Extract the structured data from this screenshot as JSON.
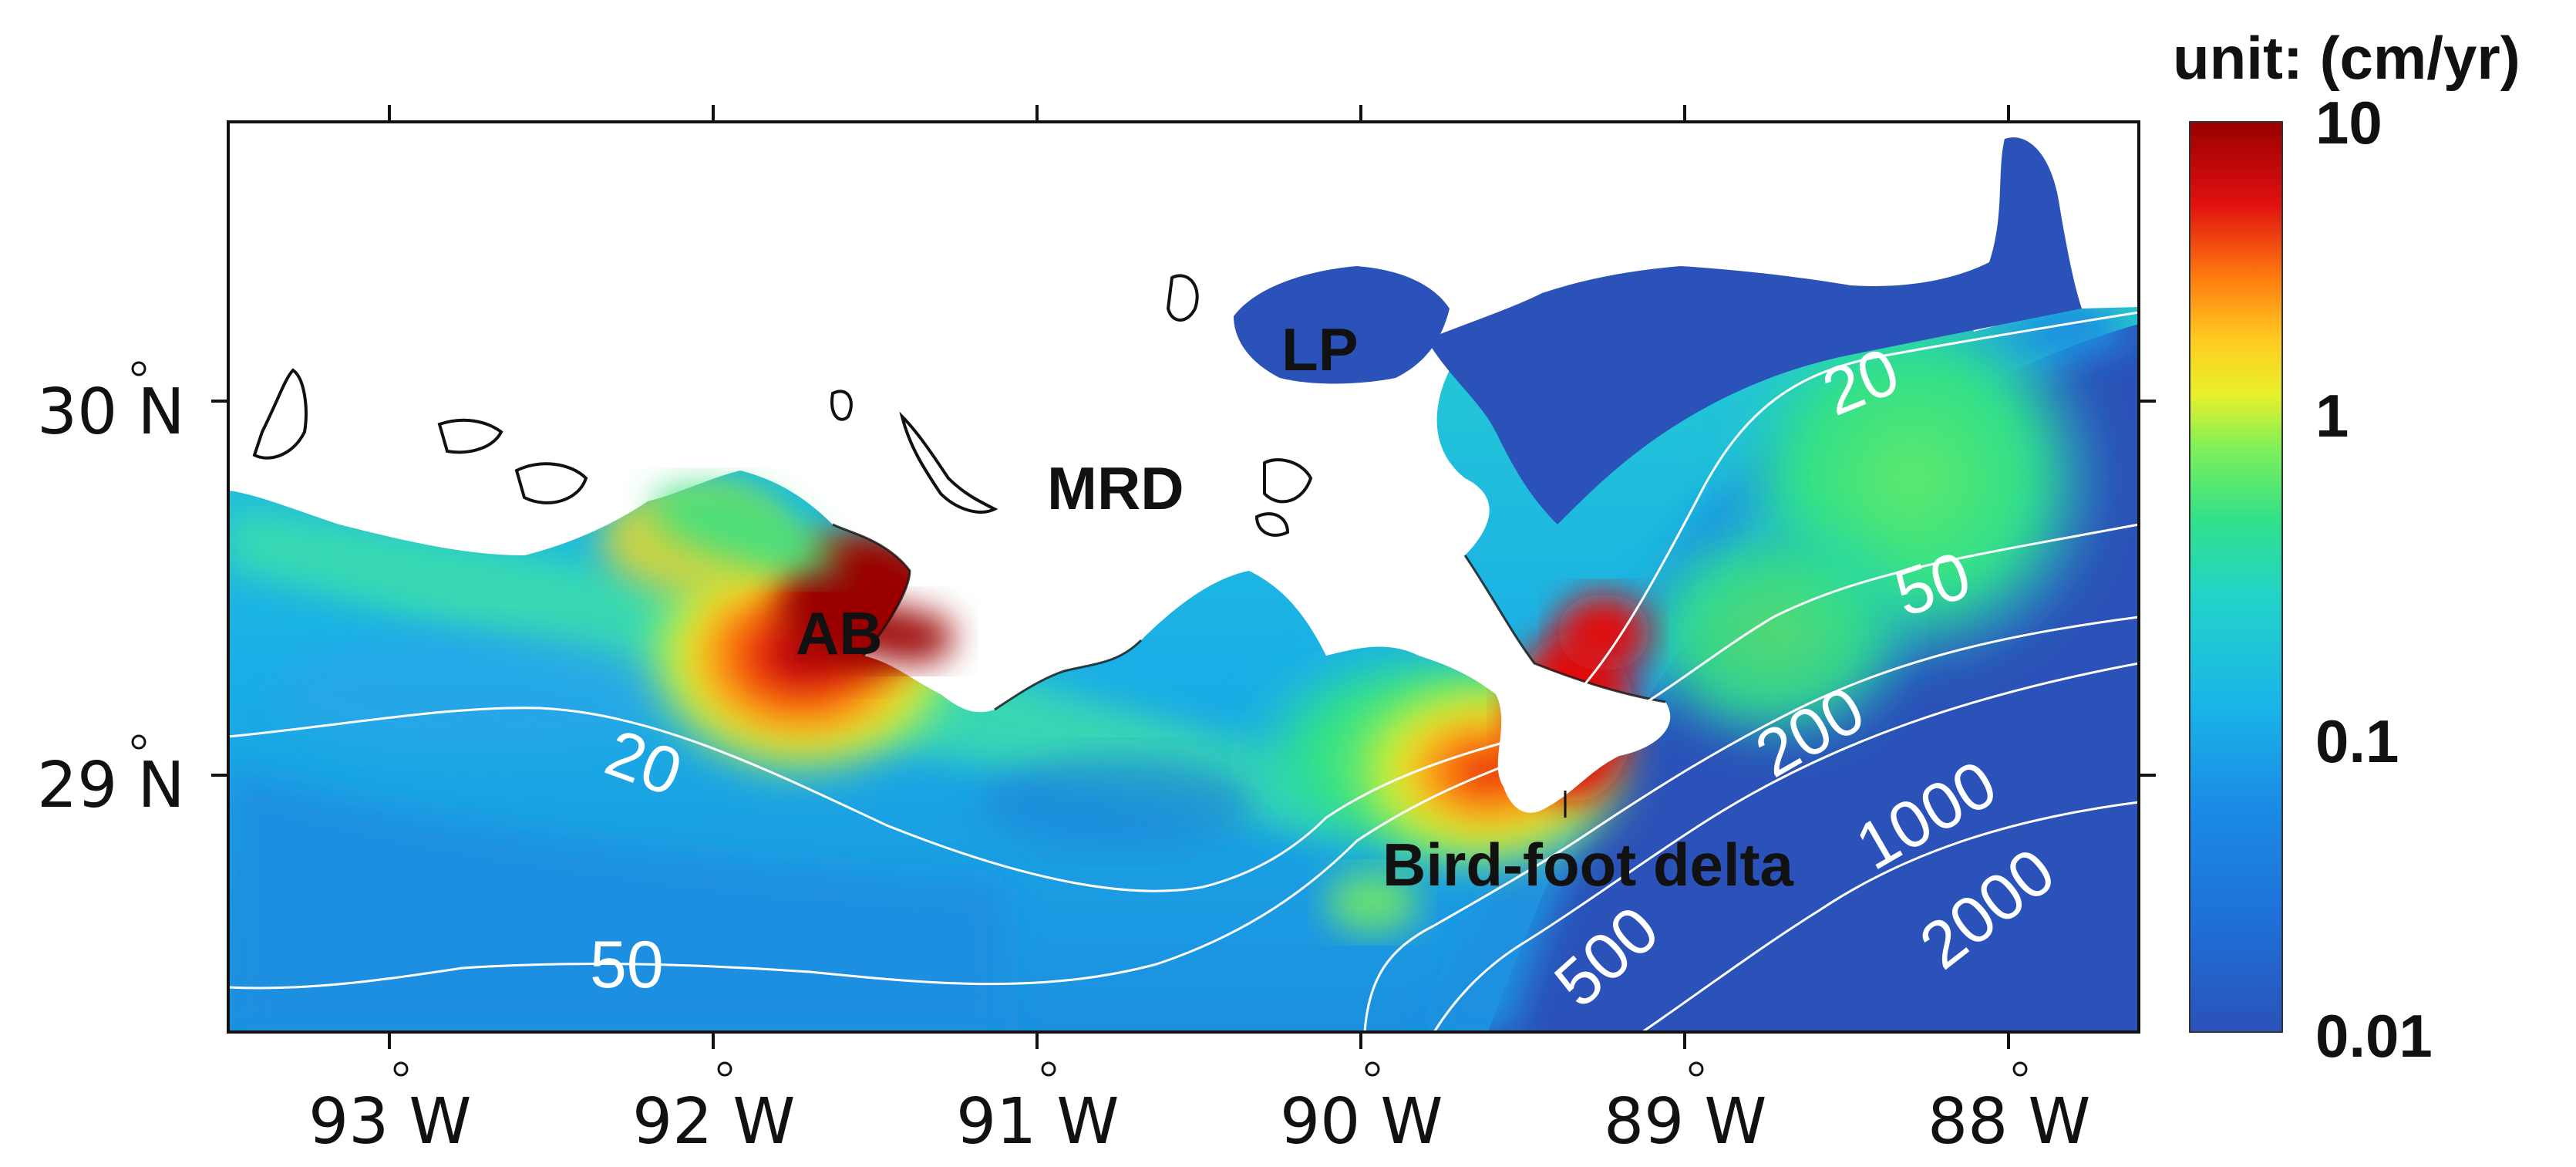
{
  "map": {
    "colorbar": {
      "title": "unit: (cm/yr)",
      "ticks": [
        "10",
        "1",
        "0.1",
        "0.01"
      ],
      "scale": "log",
      "range": [
        0.01,
        10
      ],
      "colors": [
        "#2b52b8",
        "#1a8ce6",
        "#19c8e0",
        "#2fe08c",
        "#7cf05a",
        "#e8f02a",
        "#ffb020",
        "#ff5a10",
        "#e01010",
        "#9a0000"
      ]
    },
    "x_ticks": [
      "93 W",
      "92 W",
      "91 W",
      "90 W",
      "89 W",
      "88 W"
    ],
    "y_ticks": [
      "30 N",
      "29 N"
    ],
    "places": {
      "lp": "LP",
      "mrd": "MRD",
      "ab": "AB",
      "bird_foot": "Bird-foot delta"
    },
    "contours": [
      "20",
      "50",
      "200",
      "1000",
      "2000",
      "20",
      "50",
      "500"
    ],
    "colors": {
      "deep": "#2b52b8",
      "land": "#ffffff",
      "contour": "#ffffff"
    }
  }
}
